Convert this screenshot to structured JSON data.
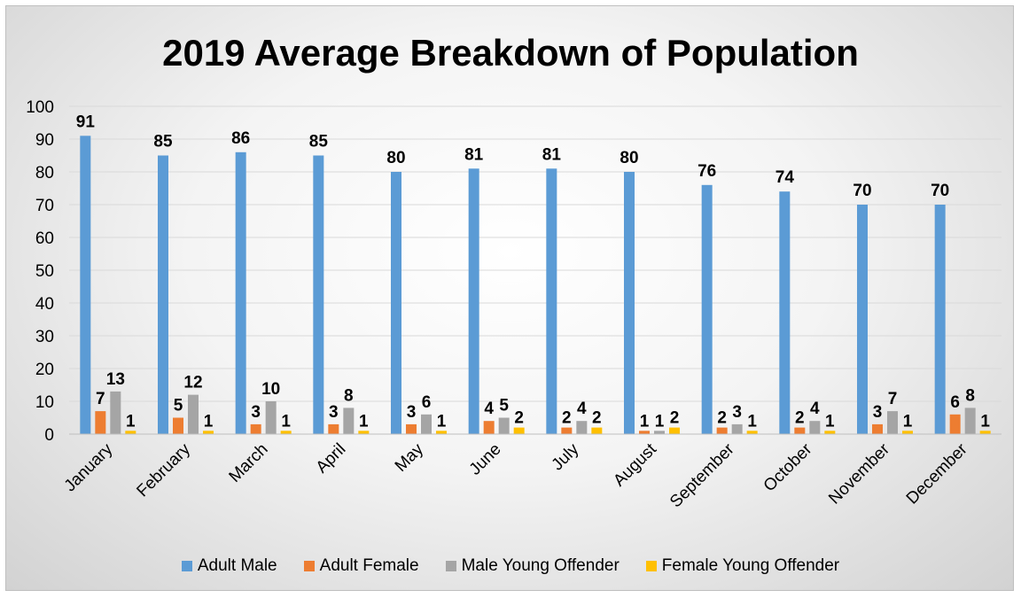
{
  "chart_data": {
    "type": "bar",
    "title": "2019 Average Breakdown of Population",
    "xlabel": "",
    "ylabel": "",
    "ylim": [
      0,
      100
    ],
    "yticks": [
      0,
      10,
      20,
      30,
      40,
      50,
      60,
      70,
      80,
      90,
      100
    ],
    "grid": true,
    "legend_position": "bottom",
    "categories": [
      "January",
      "February",
      "March",
      "April",
      "May",
      "June",
      "July",
      "August",
      "September",
      "October",
      "November",
      "December"
    ],
    "series": [
      {
        "name": "Adult Male",
        "color": "#5B9BD5",
        "values": [
          91,
          85,
          86,
          85,
          80,
          81,
          81,
          80,
          76,
          74,
          70,
          70
        ]
      },
      {
        "name": "Adult Female",
        "color": "#ED7D31",
        "values": [
          7,
          5,
          3,
          3,
          3,
          4,
          2,
          1,
          2,
          2,
          3,
          6
        ]
      },
      {
        "name": "Male Young Offender",
        "color": "#A5A5A5",
        "values": [
          13,
          12,
          10,
          8,
          6,
          5,
          4,
          1,
          3,
          4,
          7,
          8
        ]
      },
      {
        "name": "Female Young Offender",
        "color": "#FFC000",
        "values": [
          1,
          1,
          1,
          1,
          1,
          2,
          2,
          2,
          1,
          1,
          1,
          1
        ]
      }
    ]
  }
}
